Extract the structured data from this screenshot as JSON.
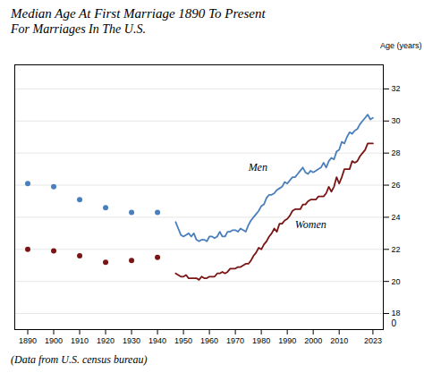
{
  "chart_data": {
    "type": "line",
    "title": "Median Age At First Marriage 1890 To Present",
    "subtitle": "For Marriages In The U.S.",
    "caption": "(Data from U.S. census bureau)",
    "ylabel": "Age (years)",
    "series": [
      {
        "name": "Men",
        "type": "scatter",
        "color": "#4a7fbd",
        "x": [
          1890,
          1900,
          1910,
          1920,
          1930,
          1940
        ],
        "values": [
          26.1,
          25.9,
          25.1,
          24.6,
          24.3,
          24.3
        ]
      },
      {
        "name": "Women",
        "type": "scatter",
        "color": "#7a1515",
        "x": [
          1890,
          1900,
          1910,
          1920,
          1930,
          1940
        ],
        "values": [
          22.0,
          21.9,
          21.6,
          21.2,
          21.3,
          21.5
        ]
      },
      {
        "name": "Men",
        "type": "line",
        "color": "#4a7fbd",
        "x": [
          1947,
          1948,
          1949,
          1950,
          1951,
          1952,
          1953,
          1954,
          1955,
          1956,
          1957,
          1958,
          1959,
          1960,
          1961,
          1962,
          1963,
          1964,
          1965,
          1966,
          1967,
          1968,
          1969,
          1970,
          1971,
          1972,
          1973,
          1974,
          1975,
          1976,
          1977,
          1978,
          1979,
          1980,
          1981,
          1982,
          1983,
          1984,
          1985,
          1986,
          1987,
          1988,
          1989,
          1990,
          1991,
          1992,
          1993,
          1994,
          1995,
          1996,
          1997,
          1998,
          1999,
          2000,
          2001,
          2002,
          2003,
          2004,
          2005,
          2006,
          2007,
          2008,
          2009,
          2010,
          2011,
          2012,
          2013,
          2014,
          2015,
          2016,
          2017,
          2018,
          2019,
          2020,
          2021,
          2022,
          2023
        ],
        "values": [
          23.7,
          23.3,
          22.9,
          22.8,
          22.9,
          23.0,
          22.8,
          23.0,
          22.6,
          22.5,
          22.6,
          22.6,
          22.5,
          22.8,
          22.8,
          22.7,
          22.8,
          23.1,
          22.8,
          22.8,
          23.1,
          23.1,
          23.2,
          23.2,
          23.1,
          23.3,
          23.2,
          23.1,
          23.5,
          23.8,
          24.0,
          24.2,
          24.4,
          24.7,
          24.8,
          25.2,
          25.4,
          25.4,
          25.5,
          25.7,
          25.8,
          25.9,
          26.2,
          26.1,
          26.3,
          26.5,
          26.5,
          26.7,
          26.9,
          27.1,
          26.8,
          26.7,
          26.9,
          26.8,
          26.9,
          27.0,
          27.1,
          27.4,
          27.1,
          27.5,
          27.7,
          27.6,
          28.1,
          28.2,
          28.7,
          28.6,
          29.0,
          29.3,
          29.2,
          29.4,
          29.5,
          29.8,
          30.0,
          30.2,
          30.4,
          30.1,
          30.2
        ]
      },
      {
        "name": "Women",
        "type": "line",
        "color": "#7a1515",
        "x": [
          1947,
          1948,
          1949,
          1950,
          1951,
          1952,
          1953,
          1954,
          1955,
          1956,
          1957,
          1958,
          1959,
          1960,
          1961,
          1962,
          1963,
          1964,
          1965,
          1966,
          1967,
          1968,
          1969,
          1970,
          1971,
          1972,
          1973,
          1974,
          1975,
          1976,
          1977,
          1978,
          1979,
          1980,
          1981,
          1982,
          1983,
          1984,
          1985,
          1986,
          1987,
          1988,
          1989,
          1990,
          1991,
          1992,
          1993,
          1994,
          1995,
          1996,
          1997,
          1998,
          1999,
          2000,
          2001,
          2002,
          2003,
          2004,
          2005,
          2006,
          2007,
          2008,
          2009,
          2010,
          2011,
          2012,
          2013,
          2014,
          2015,
          2016,
          2017,
          2018,
          2019,
          2020,
          2021,
          2022,
          2023
        ],
        "values": [
          20.5,
          20.4,
          20.3,
          20.3,
          20.4,
          20.2,
          20.2,
          20.2,
          20.2,
          20.1,
          20.3,
          20.2,
          20.2,
          20.3,
          20.3,
          20.3,
          20.5,
          20.5,
          20.6,
          20.5,
          20.6,
          20.8,
          20.8,
          20.8,
          20.9,
          20.9,
          21.0,
          21.1,
          21.1,
          21.3,
          21.6,
          21.8,
          22.1,
          22.0,
          22.3,
          22.5,
          22.8,
          23.0,
          23.3,
          23.1,
          23.6,
          23.6,
          23.8,
          23.9,
          24.1,
          24.4,
          24.5,
          24.5,
          24.5,
          24.8,
          24.8,
          25.0,
          25.1,
          25.1,
          25.1,
          25.3,
          25.3,
          25.3,
          25.5,
          25.9,
          25.6,
          25.9,
          26.5,
          26.1,
          26.5,
          27.0,
          27.0,
          27.0,
          27.5,
          27.4,
          27.5,
          27.8,
          28.0,
          28.2,
          28.6,
          28.6,
          28.6
        ]
      }
    ],
    "annotations": [
      {
        "text": "Men",
        "x": 1975,
        "y": 26.8
      },
      {
        "text": "Women",
        "x": 1993,
        "y": 23.2
      },
      {
        "text": "0"
      }
    ],
    "xlim": [
      1885,
      2027
    ],
    "xticks": [
      1890,
      1900,
      1910,
      1920,
      1930,
      1940,
      1950,
      1960,
      1970,
      1980,
      1990,
      2000,
      2010,
      2023
    ],
    "ylim": [
      17.0,
      33.5
    ],
    "yticks": [
      18,
      20,
      22,
      24,
      26,
      28,
      30,
      32
    ],
    "grid": true
  }
}
